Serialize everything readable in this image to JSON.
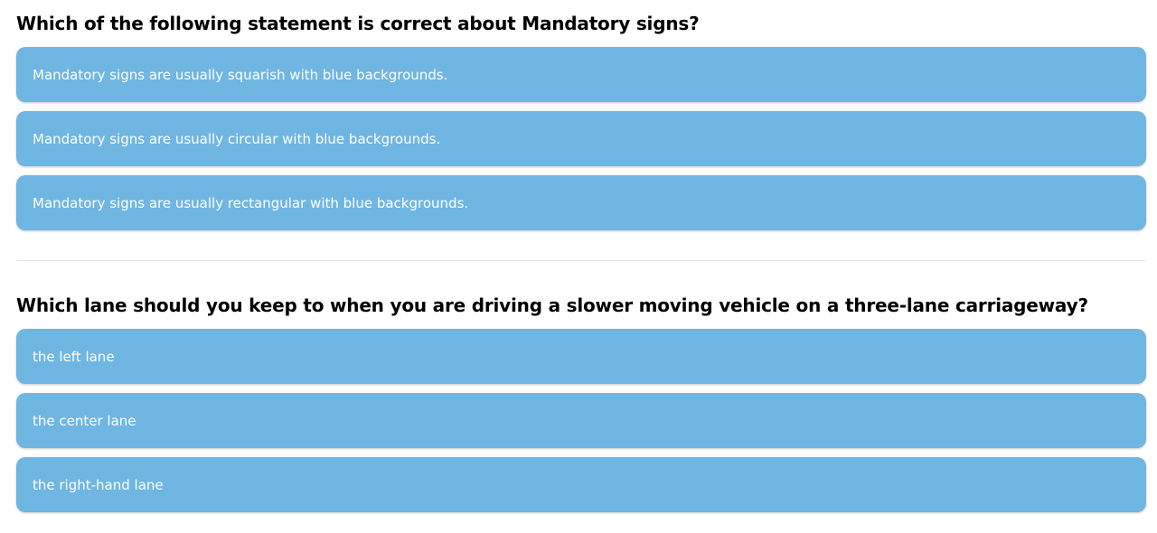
{
  "questions": [
    {
      "title": "Which of the following statement is correct about Mandatory signs?",
      "options": [
        "Mandatory signs are usually squarish with blue backgrounds.",
        "Mandatory signs are usually circular with blue backgrounds.",
        "Mandatory signs are usually rectangular with blue backgrounds."
      ]
    },
    {
      "title": "Which lane should you keep to when you are driving a slower moving vehicle on a three-lane carriageway?",
      "options": [
        "the left lane",
        "the center lane",
        "the right-hand lane"
      ]
    }
  ],
  "colors": {
    "option_bg": "#6fb6e3",
    "option_text": "#ffffff",
    "title_text": "#000000",
    "divider": "#e6e6e6"
  }
}
